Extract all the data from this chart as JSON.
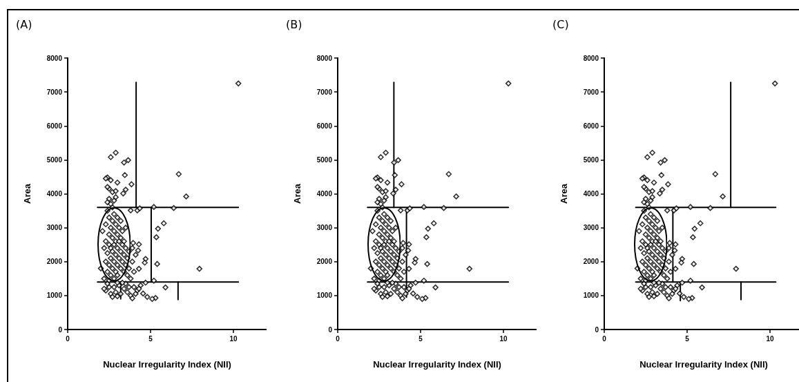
{
  "chart_data": [
    {
      "type": "scatter",
      "title": "(A)",
      "xlabel": "Nuclear Irregularity Index (NII)",
      "ylabel": "Area",
      "xlim": [
        0,
        12
      ],
      "xticks": [
        0,
        5,
        10
      ],
      "ylim": [
        0,
        8000
      ],
      "yticks": [
        0,
        1000,
        2000,
        3000,
        4000,
        5000,
        6000,
        7000,
        8000
      ],
      "grid": false,
      "series": [
        {
          "type": "scatter",
          "marker": "diamond",
          "color": "#000000",
          "x": [
            10.3,
            2.6,
            2.9,
            3.4,
            3.65,
            3.45,
            2.4,
            3.0,
            3.85,
            3.5,
            3.35,
            6.7,
            7.15,
            3.8,
            4.2,
            4.35,
            5.2,
            6.4,
            5.8,
            5.45,
            5.35,
            5.4,
            7.95,
            5.2,
            5.9,
            5.3,
            5.1,
            4.8,
            4.55,
            4.7,
            4.7,
            4.65,
            4.3,
            4.3,
            3.95,
            4.25,
            2.3,
            2.5,
            2.6,
            2.7,
            2.9,
            3.0,
            3.1,
            3.2,
            3.4,
            3.5,
            3.6,
            3.8,
            3.9,
            4.0,
            4.2,
            4.4,
            2.4,
            2.8,
            3.3,
            3.7,
            4.1,
            2.2,
            3.0,
            4.3,
            2.0,
            2.2,
            2.1,
            2.3,
            2.3,
            2.3,
            2.4,
            2.4,
            2.4,
            2.5,
            2.5,
            2.5,
            2.5,
            2.6,
            2.6,
            2.6,
            2.6,
            2.7,
            2.7,
            2.7,
            2.7,
            2.7,
            2.8,
            2.8,
            2.8,
            2.8,
            2.8,
            2.9,
            2.9,
            2.9,
            2.9,
            3.0,
            3.0,
            3.0,
            3.0,
            3.0,
            3.1,
            3.1,
            3.1,
            3.2,
            3.2,
            3.2,
            3.2,
            3.3,
            3.3,
            3.3,
            3.4,
            3.4,
            3.4,
            3.5,
            3.5,
            3.5,
            3.6,
            3.6,
            3.7,
            3.7,
            3.9,
            3.9,
            4.0,
            4.1,
            3.8,
            2.2,
            2.5,
            2.4,
            2.5,
            2.6,
            2.8,
            2.9,
            2.7,
            2.9,
            2.5,
            2.4,
            2.6,
            2.3
          ],
          "values": [
            7250,
            5080,
            5210,
            4920,
            4990,
            4550,
            4480,
            4330,
            4280,
            4120,
            4010,
            4580,
            3920,
            3510,
            3510,
            3570,
            3610,
            3580,
            3130,
            2970,
            2720,
            1930,
            1790,
            1440,
            1240,
            930,
            900,
            960,
            1060,
            1380,
            2080,
            1970,
            1790,
            2510,
            2550,
            2330,
            1150,
            1250,
            1050,
            960,
            1100,
            980,
            1300,
            1050,
            1200,
            1350,
            1100,
            1000,
            920,
            1250,
            1150,
            1300,
            1350,
            1250,
            1380,
            1250,
            1050,
            1200,
            1380,
            1200,
            1800,
            2400,
            2900,
            2000,
            2600,
            3100,
            1700,
            2250,
            3500,
            1900,
            2500,
            2800,
            3300,
            1600,
            2100,
            2400,
            3000,
            1800,
            2300,
            2700,
            3200,
            3600,
            1500,
            2000,
            2500,
            2900,
            3400,
            1700,
            2200,
            2600,
            3100,
            1600,
            1900,
            2400,
            2800,
            3300,
            2100,
            2600,
            3000,
            1800,
            2300,
            2700,
            3200,
            2000,
            2500,
            2900,
            1700,
            2200,
            2600,
            1900,
            2400,
            3000,
            1600,
            2100,
            2300,
            1800,
            2400,
            2000,
            1700,
            2200,
            1500,
            1500,
            1450,
            3750,
            3850,
            3700,
            3800,
            3900,
            4050,
            4080,
            4150,
            4200,
            4400,
            4450
          ]
        },
        {
          "type": "line",
          "marker": "none",
          "color": "#000000",
          "x": [
            4.13,
            4.13
          ],
          "values": [
            3600,
            7280
          ]
        },
        {
          "type": "line",
          "marker": "none",
          "color": "#000000",
          "x": [
            1.8,
            10.3
          ],
          "values": [
            3600,
            3600
          ]
        },
        {
          "type": "line",
          "marker": "none",
          "color": "#000000",
          "x": [
            5.04,
            5.04
          ],
          "values": [
            1400,
            3600
          ]
        },
        {
          "type": "line",
          "marker": "none",
          "color": "#000000",
          "x": [
            1.8,
            10.3
          ],
          "values": [
            1400,
            1400
          ]
        },
        {
          "type": "line",
          "marker": "none",
          "color": "#000000",
          "x": [
            3.2,
            3.2
          ],
          "values": [
            900,
            1400
          ]
        },
        {
          "type": "line",
          "marker": "none",
          "color": "#000000",
          "x": [
            6.66,
            6.66
          ],
          "values": [
            880,
            1400
          ]
        }
      ]
    },
    {
      "type": "scatter",
      "title": "(B)",
      "xlabel": "Nuclear Irregularity Index (NII)",
      "ylabel": "Area",
      "xlim": [
        0,
        12
      ],
      "xticks": [
        0,
        5,
        10
      ],
      "ylim": [
        0,
        8000
      ],
      "yticks": [
        0,
        1000,
        2000,
        3000,
        4000,
        5000,
        6000,
        7000,
        8000
      ],
      "grid": false,
      "series": [
        {
          "type": "scatter",
          "marker": "diamond",
          "color": "#000000",
          "x": [
            10.3,
            2.6,
            2.9,
            3.4,
            3.65,
            3.45,
            2.4,
            3.0,
            3.85,
            3.5,
            3.35,
            6.7,
            7.15,
            3.8,
            4.2,
            4.35,
            5.2,
            6.4,
            5.8,
            5.45,
            5.35,
            5.4,
            7.95,
            5.2,
            5.9,
            5.3,
            5.1,
            4.8,
            4.55,
            4.7,
            4.7,
            4.65,
            4.3,
            4.3,
            3.95,
            4.25,
            2.3,
            2.5,
            2.6,
            2.7,
            2.9,
            3.0,
            3.1,
            3.2,
            3.4,
            3.5,
            3.6,
            3.8,
            3.9,
            4.0,
            4.2,
            4.4,
            2.4,
            2.8,
            3.3,
            3.7,
            4.1,
            2.2,
            3.0,
            4.3,
            2.0,
            2.2,
            2.1,
            2.3,
            2.3,
            2.3,
            2.4,
            2.4,
            2.4,
            2.5,
            2.5,
            2.5,
            2.5,
            2.6,
            2.6,
            2.6,
            2.6,
            2.7,
            2.7,
            2.7,
            2.7,
            2.7,
            2.8,
            2.8,
            2.8,
            2.8,
            2.8,
            2.9,
            2.9,
            2.9,
            2.9,
            3.0,
            3.0,
            3.0,
            3.0,
            3.0,
            3.1,
            3.1,
            3.1,
            3.2,
            3.2,
            3.2,
            3.2,
            3.3,
            3.3,
            3.3,
            3.4,
            3.4,
            3.4,
            3.5,
            3.5,
            3.5,
            3.6,
            3.6,
            3.7,
            3.7,
            3.9,
            3.9,
            4.0,
            4.1,
            3.8,
            2.2,
            2.5,
            2.4,
            2.5,
            2.6,
            2.8,
            2.9,
            2.7,
            2.9,
            2.5,
            2.4,
            2.6,
            2.3
          ],
          "values": [
            7250,
            5080,
            5210,
            4920,
            4990,
            4550,
            4480,
            4330,
            4280,
            4120,
            4010,
            4580,
            3920,
            3510,
            3510,
            3570,
            3610,
            3580,
            3130,
            2970,
            2720,
            1930,
            1790,
            1440,
            1240,
            930,
            900,
            960,
            1060,
            1380,
            2080,
            1970,
            1790,
            2510,
            2550,
            2330,
            1150,
            1250,
            1050,
            960,
            1100,
            980,
            1300,
            1050,
            1200,
            1350,
            1100,
            1000,
            920,
            1250,
            1150,
            1300,
            1350,
            1250,
            1380,
            1250,
            1050,
            1200,
            1380,
            1200,
            1800,
            2400,
            2900,
            2000,
            2600,
            3100,
            1700,
            2250,
            3500,
            1900,
            2500,
            2800,
            3300,
            1600,
            2100,
            2400,
            3000,
            1800,
            2300,
            2700,
            3200,
            3600,
            1500,
            2000,
            2500,
            2900,
            3400,
            1700,
            2200,
            2600,
            3100,
            1600,
            1900,
            2400,
            2800,
            3300,
            2100,
            2600,
            3000,
            1800,
            2300,
            2700,
            3200,
            2000,
            2500,
            2900,
            1700,
            2200,
            2600,
            1900,
            2400,
            3000,
            1600,
            2100,
            2300,
            1800,
            2400,
            2000,
            1700,
            2200,
            1500,
            1500,
            1450,
            3750,
            3850,
            3700,
            3800,
            3900,
            4050,
            4080,
            4150,
            4200,
            4400,
            4450
          ]
        },
        {
          "type": "line",
          "marker": "none",
          "color": "#000000",
          "x": [
            3.39,
            3.39
          ],
          "values": [
            3600,
            7280
          ]
        },
        {
          "type": "line",
          "marker": "none",
          "color": "#000000",
          "x": [
            1.8,
            10.3
          ],
          "values": [
            3600,
            3600
          ]
        },
        {
          "type": "line",
          "marker": "none",
          "color": "#000000",
          "x": [
            4.15,
            4.15
          ],
          "values": [
            950,
            3550
          ]
        },
        {
          "type": "line",
          "marker": "none",
          "color": "#000000",
          "x": [
            1.8,
            10.3
          ],
          "values": [
            1400,
            1400
          ]
        }
      ]
    },
    {
      "type": "scatter",
      "title": "(C)",
      "xlabel": "Nuclear Irregularity Index (NII)",
      "ylabel": "Area",
      "xlim": [
        0,
        12
      ],
      "xticks": [
        0,
        5,
        10
      ],
      "ylim": [
        0,
        8000
      ],
      "yticks": [
        0,
        1000,
        2000,
        3000,
        4000,
        5000,
        6000,
        7000,
        8000
      ],
      "grid": false,
      "series": [
        {
          "type": "scatter",
          "marker": "diamond",
          "color": "#000000",
          "x": [
            10.3,
            2.6,
            2.9,
            3.4,
            3.65,
            3.45,
            2.4,
            3.0,
            3.85,
            3.5,
            3.35,
            6.7,
            7.15,
            3.8,
            4.2,
            4.35,
            5.2,
            6.4,
            5.8,
            5.45,
            5.35,
            5.4,
            7.95,
            5.2,
            5.9,
            5.3,
            5.1,
            4.8,
            4.55,
            4.7,
            4.7,
            4.65,
            4.3,
            4.3,
            3.95,
            4.25,
            2.3,
            2.5,
            2.6,
            2.7,
            2.9,
            3.0,
            3.1,
            3.2,
            3.4,
            3.5,
            3.6,
            3.8,
            3.9,
            4.0,
            4.2,
            4.4,
            2.4,
            2.8,
            3.3,
            3.7,
            4.1,
            2.2,
            3.0,
            4.3,
            2.0,
            2.2,
            2.1,
            2.3,
            2.3,
            2.3,
            2.4,
            2.4,
            2.4,
            2.5,
            2.5,
            2.5,
            2.5,
            2.6,
            2.6,
            2.6,
            2.6,
            2.7,
            2.7,
            2.7,
            2.7,
            2.7,
            2.8,
            2.8,
            2.8,
            2.8,
            2.8,
            2.9,
            2.9,
            2.9,
            2.9,
            3.0,
            3.0,
            3.0,
            3.0,
            3.0,
            3.1,
            3.1,
            3.1,
            3.2,
            3.2,
            3.2,
            3.2,
            3.3,
            3.3,
            3.3,
            3.4,
            3.4,
            3.4,
            3.5,
            3.5,
            3.5,
            3.6,
            3.6,
            3.7,
            3.7,
            3.9,
            3.9,
            4.0,
            4.1,
            3.8,
            2.2,
            2.5,
            2.4,
            2.5,
            2.6,
            2.8,
            2.9,
            2.7,
            2.9,
            2.5,
            2.4,
            2.6,
            2.3
          ],
          "values": [
            7250,
            5080,
            5210,
            4920,
            4990,
            4550,
            4480,
            4330,
            4280,
            4120,
            4010,
            4580,
            3920,
            3510,
            3510,
            3570,
            3610,
            3580,
            3130,
            2970,
            2720,
            1930,
            1790,
            1440,
            1240,
            930,
            900,
            960,
            1060,
            1380,
            2080,
            1970,
            1790,
            2510,
            2550,
            2330,
            1150,
            1250,
            1050,
            960,
            1100,
            980,
            1300,
            1050,
            1200,
            1350,
            1100,
            1000,
            920,
            1250,
            1150,
            1300,
            1350,
            1250,
            1380,
            1250,
            1050,
            1200,
            1380,
            1200,
            1800,
            2400,
            2900,
            2000,
            2600,
            3100,
            1700,
            2250,
            3500,
            1900,
            2500,
            2800,
            3300,
            1600,
            2100,
            2400,
            3000,
            1800,
            2300,
            2700,
            3200,
            3600,
            1500,
            2000,
            2500,
            2900,
            3400,
            1700,
            2200,
            2600,
            3100,
            1600,
            1900,
            2400,
            2800,
            3300,
            2100,
            2600,
            3000,
            1800,
            2300,
            2700,
            3200,
            2000,
            2500,
            2900,
            1700,
            2200,
            2600,
            1900,
            2400,
            3000,
            1600,
            2100,
            2300,
            1800,
            2400,
            2000,
            1700,
            2200,
            1500,
            1500,
            1450,
            3750,
            3850,
            3700,
            3800,
            3900,
            4050,
            4080,
            4150,
            4200,
            4400,
            4450
          ]
        },
        {
          "type": "line",
          "marker": "none",
          "color": "#000000",
          "x": [
            7.63,
            7.63
          ],
          "values": [
            3600,
            7280
          ]
        },
        {
          "type": "line",
          "marker": "none",
          "color": "#000000",
          "x": [
            1.9,
            10.35
          ],
          "values": [
            3600,
            3600
          ]
        },
        {
          "type": "line",
          "marker": "none",
          "color": "#000000",
          "x": [
            4.14,
            4.14
          ],
          "values": [
            1400,
            3550
          ]
        },
        {
          "type": "line",
          "marker": "none",
          "color": "#000000",
          "x": [
            1.9,
            10.35
          ],
          "values": [
            1400,
            1400
          ]
        },
        {
          "type": "line",
          "marker": "none",
          "color": "#000000",
          "x": [
            4.59,
            4.59
          ],
          "values": [
            850,
            1400
          ]
        },
        {
          "type": "line",
          "marker": "none",
          "color": "#000000",
          "x": [
            8.25,
            8.25
          ],
          "values": [
            880,
            1400
          ]
        }
      ]
    }
  ]
}
